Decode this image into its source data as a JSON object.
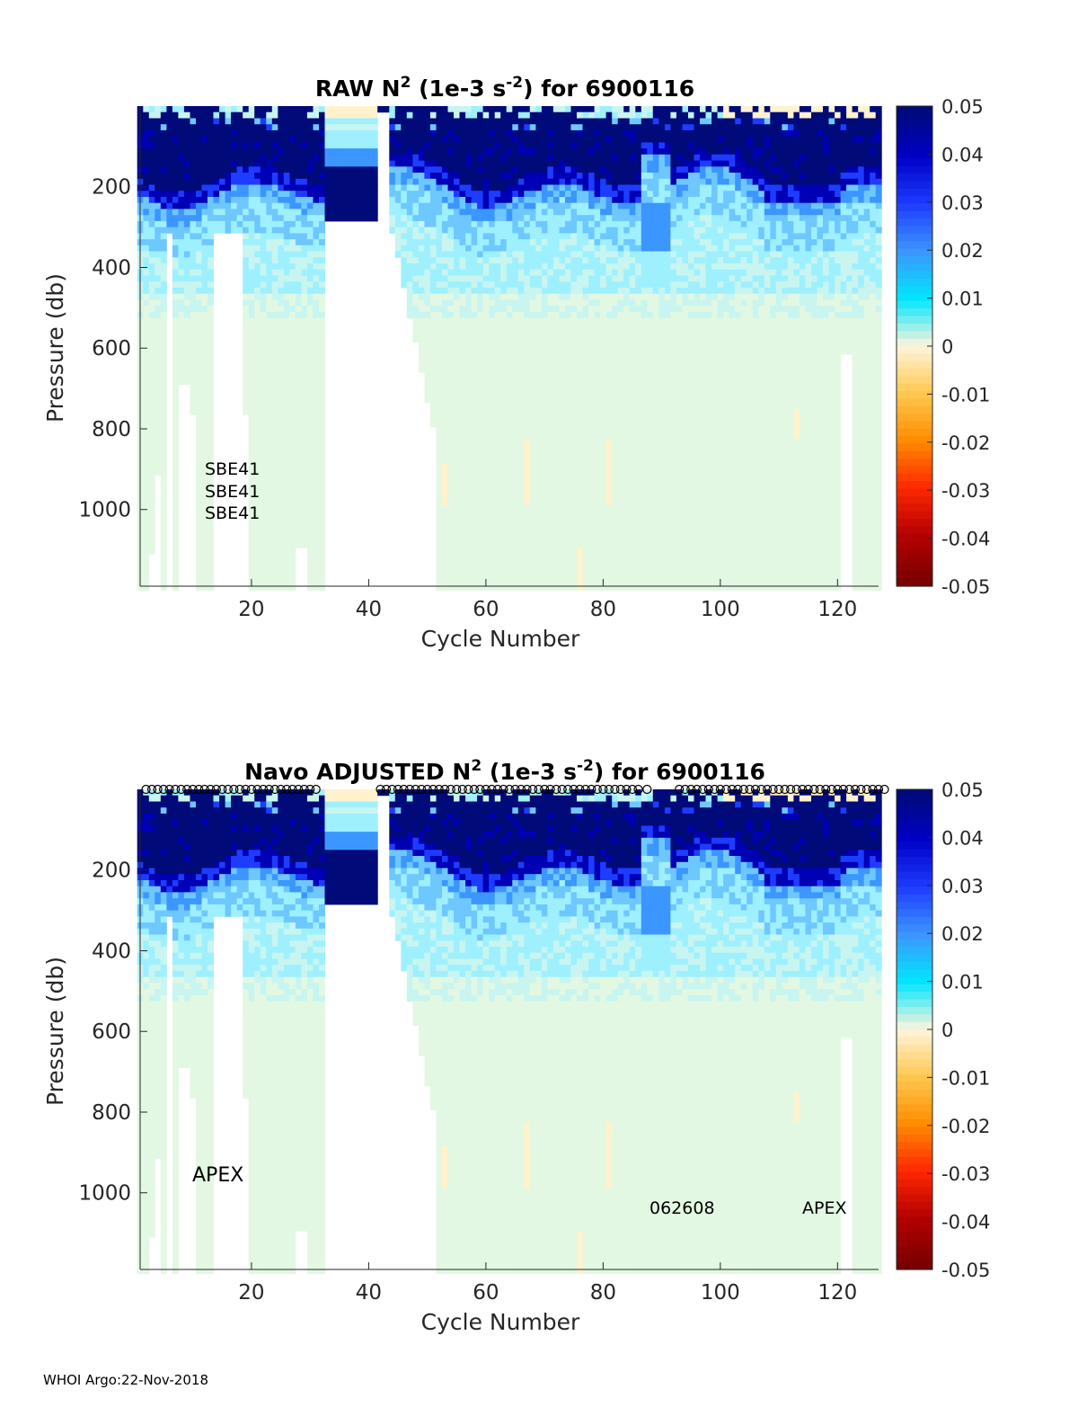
{
  "footer": "WHOI Argo:22-Nov-2018",
  "chart_data": [
    {
      "type": "heatmap",
      "title_parts": [
        "RAW N",
        "2",
        " (1e-3 s",
        "-2",
        ") for 6900116"
      ],
      "xlabel": "Cycle Number",
      "ylabel": "Pressure (db)",
      "xlim": [
        1,
        127
      ],
      "ylim": [
        1190,
        0
      ],
      "xticks": [
        20,
        40,
        60,
        80,
        100,
        120
      ],
      "yticks": [
        200,
        400,
        600,
        800,
        1000
      ],
      "colorbar": {
        "ticks": [
          "0.05",
          "0.04",
          "0.03",
          "0.02",
          "0.01",
          "0",
          "-0.01",
          "-0.02",
          "-0.03",
          "-0.04",
          "-0.05"
        ],
        "range": [
          -0.05,
          0.05
        ],
        "colors_high_to_low": [
          "#000a78",
          "#0000c8",
          "#1e3cff",
          "#3c96ff",
          "#00e6ff",
          "#fff5dc",
          "#ffc850",
          "#ff8c00",
          "#ff2800",
          "#b40000",
          "#780000"
        ]
      },
      "annotations": [
        "SBE41",
        "SBE41",
        "SBE41"
      ],
      "profile_markers": false
    },
    {
      "type": "heatmap",
      "title_parts": [
        "Navo  ADJUSTED N",
        "2",
        " (1e-3 s",
        "-2",
        ") for 6900116"
      ],
      "xlabel": "Cycle Number",
      "ylabel": "Pressure (db)",
      "xlim": [
        1,
        127
      ],
      "ylim": [
        1190,
        0
      ],
      "xticks": [
        20,
        40,
        60,
        80,
        100,
        120
      ],
      "yticks": [
        200,
        400,
        600,
        800,
        1000
      ],
      "colorbar": {
        "ticks": [
          "0.05",
          "0.04",
          "0.03",
          "0.02",
          "0.01",
          "0",
          "-0.01",
          "-0.02",
          "-0.03",
          "-0.04",
          "-0.05"
        ],
        "range": [
          -0.05,
          0.05
        ],
        "colors_high_to_low": [
          "#000a78",
          "#0000c8",
          "#1e3cff",
          "#3c96ff",
          "#00e6ff",
          "#fff5dc",
          "#ffc850",
          "#ff8c00",
          "#ff2800",
          "#b40000",
          "#780000"
        ]
      },
      "annotations": [
        "APEX",
        "062608",
        "APEX"
      ],
      "profile_markers": true
    }
  ]
}
